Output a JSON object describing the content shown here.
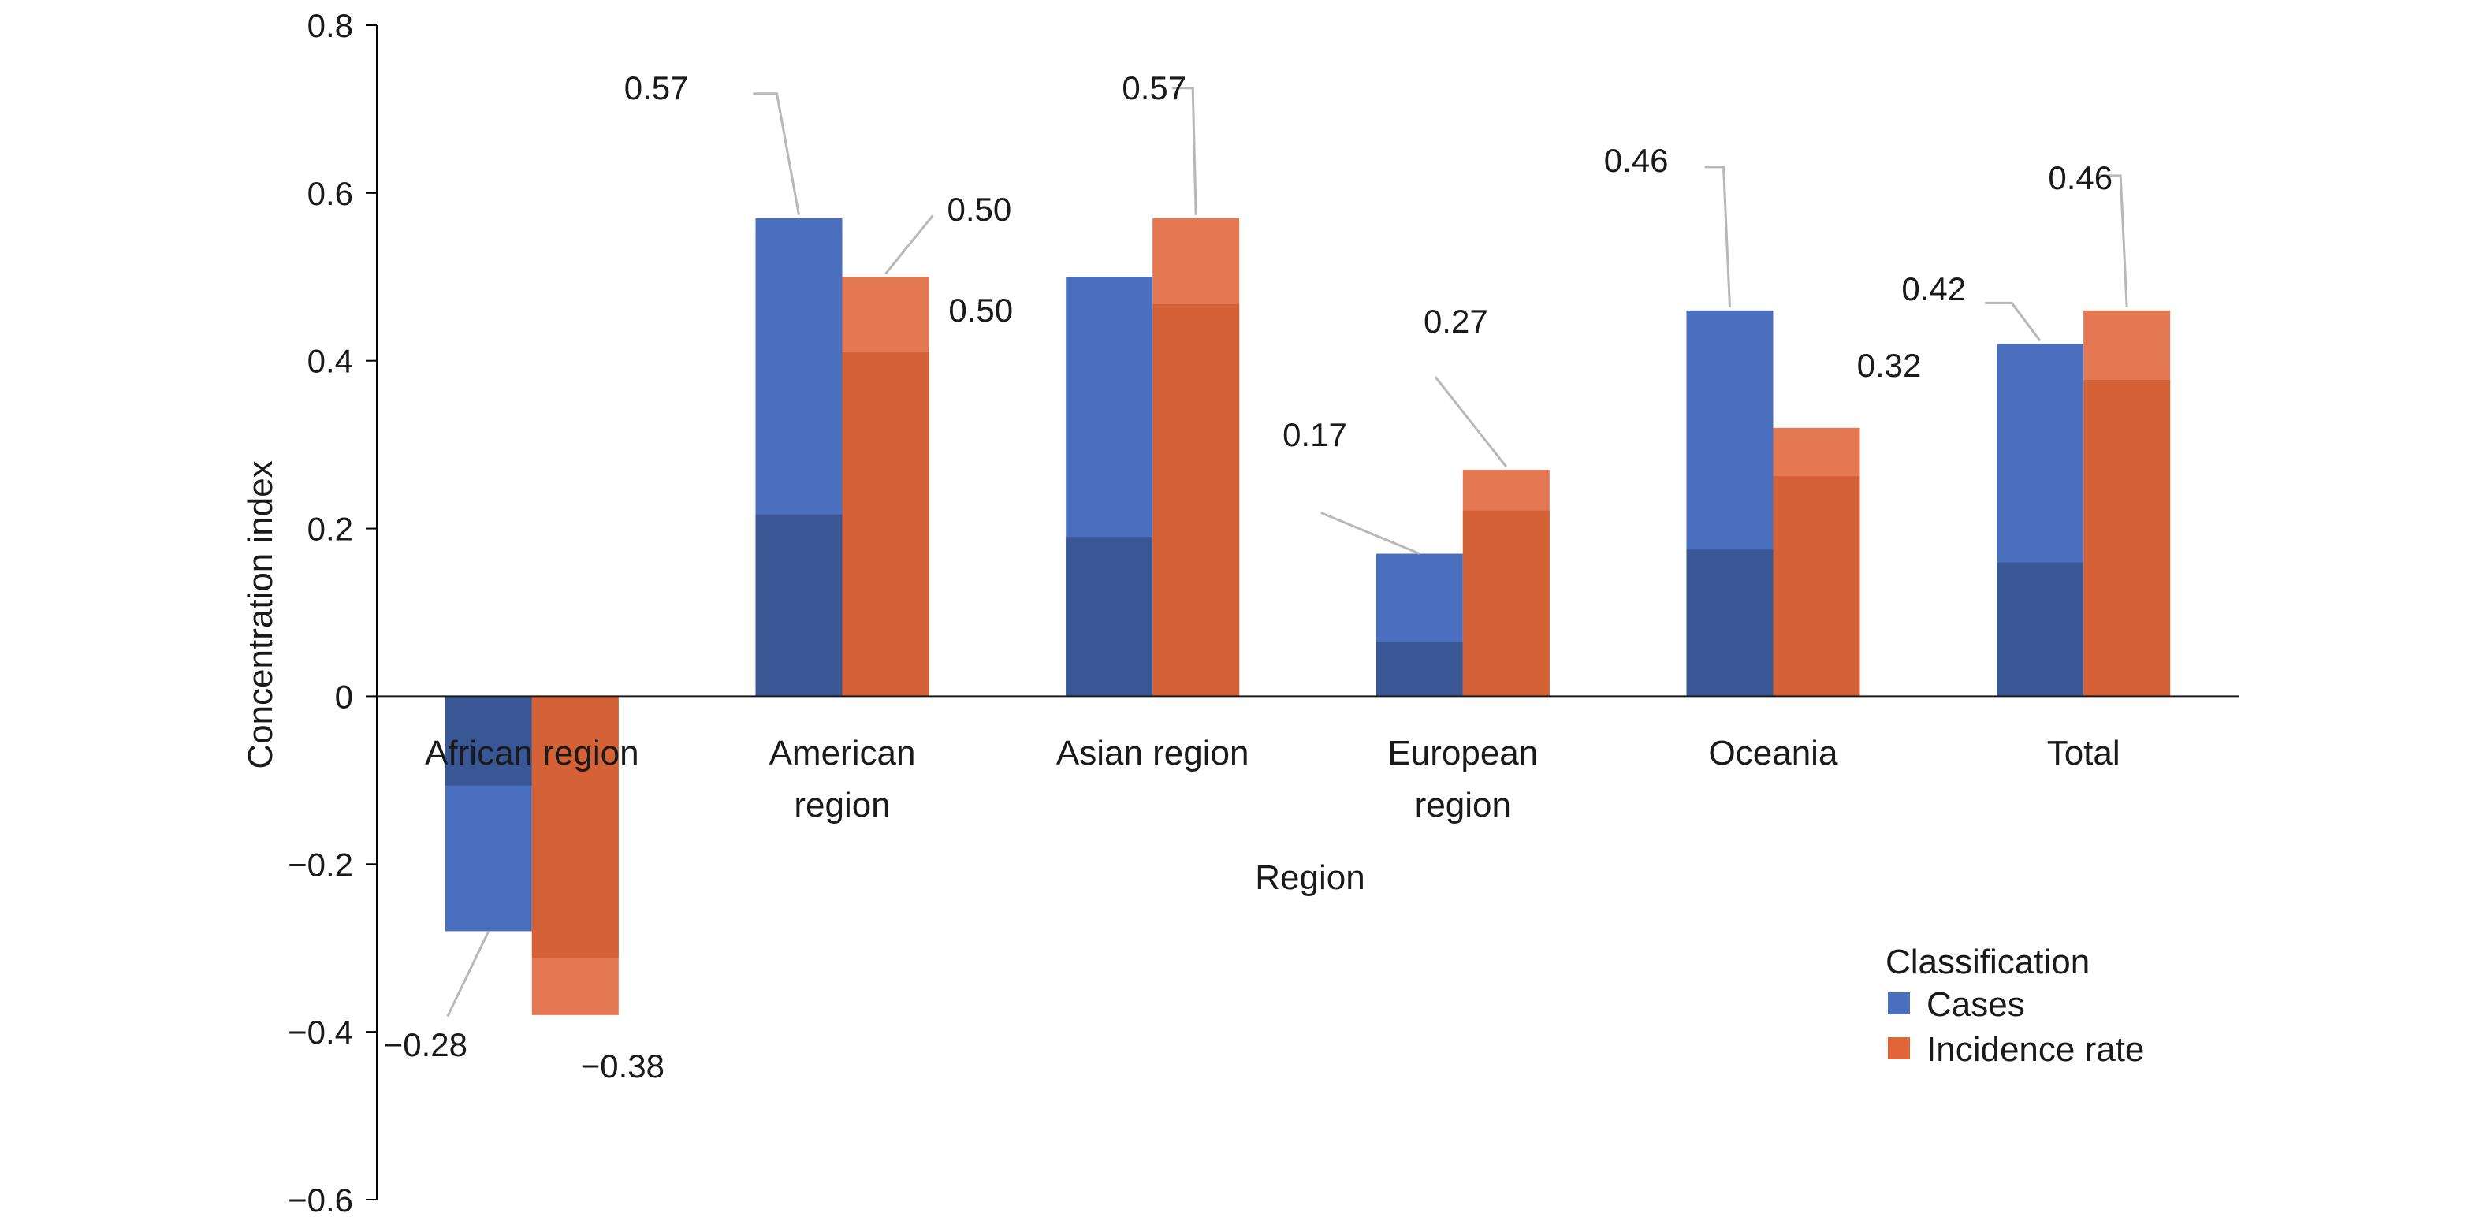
{
  "chart_data": {
    "type": "bar",
    "categories": [
      "African region",
      "American region",
      "Asian region",
      "European region",
      "Oceania",
      "Total"
    ],
    "series": [
      {
        "name": "Cases",
        "values": [
          -0.28,
          0.57,
          0.5,
          0.17,
          0.46,
          0.42
        ],
        "labels": [
          "−0.28",
          "0.57",
          "0.50",
          "0.17",
          "0.46",
          "0.42"
        ]
      },
      {
        "name": "Incidence rate",
        "values": [
          -0.38,
          0.5,
          0.57,
          0.27,
          0.32,
          0.46
        ],
        "labels": [
          "−0.38",
          "0.50",
          "0.57",
          "0.27",
          "0.32",
          "0.46"
        ]
      }
    ],
    "xlabel": "Region",
    "ylabel": "Concentration index",
    "ylim": [
      -0.6,
      0.8
    ],
    "yticks": [
      -0.6,
      -0.4,
      -0.2,
      0,
      0.2,
      0.4,
      0.6,
      0.8
    ],
    "ytick_labels": [
      "−0.6",
      "−0.4",
      "−0.2",
      "0",
      "0.2",
      "0.4",
      "0.6",
      "0.8"
    ],
    "legend": {
      "title": "Classification",
      "placement": "bottom-right"
    },
    "grid": false,
    "colors": {
      "Cases": "#4a6fbf",
      "Incidence rate": "#e0663a"
    }
  }
}
